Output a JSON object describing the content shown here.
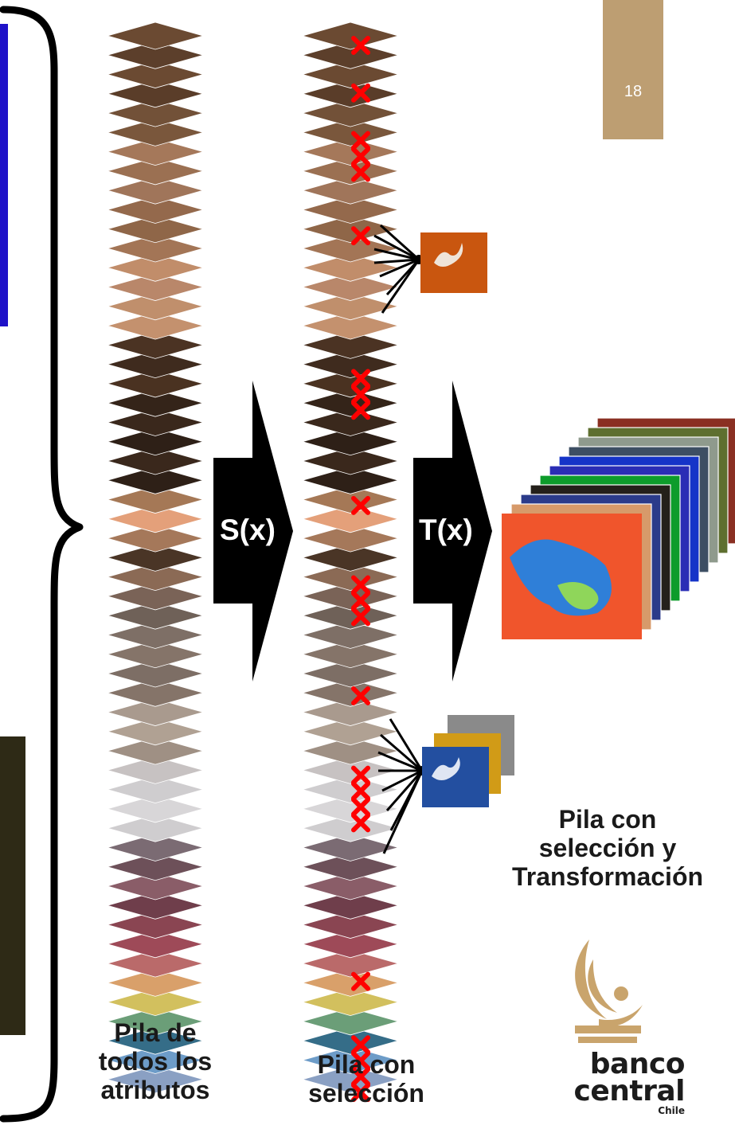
{
  "page_number": "18",
  "stack_all": {
    "line1": "Pila de",
    "line2": "todos los",
    "line3": "atributos"
  },
  "stack_selection": {
    "line1": "Pila con",
    "line2": "selección"
  },
  "stack_selection_transform": {
    "line1": "Pila con",
    "line2": "selección y",
    "line3": "Transformación"
  },
  "arrow_select": "S(x)",
  "arrow_transform": "T(x)",
  "logo": {
    "line1": "banco",
    "line2": "central",
    "line3": "Chile"
  },
  "colors": {
    "page_badge": "#bd9e72",
    "marker": "#ff0000",
    "arrow": "#000000",
    "logo_gold": "#c9a46c"
  },
  "layer_colors": [
    "#6b4a32",
    "#5c3f2b",
    "#6b4a32",
    "#5a3d29",
    "#725138",
    "#7a573c",
    "#a5785a",
    "#9b7052",
    "#a0755a",
    "#94694c",
    "#8f6648",
    "#a37556",
    "#c18d6a",
    "#b9876a",
    "#c08f6c",
    "#c4916e",
    "#4b3323",
    "#3f2b1e",
    "#4a3221",
    "#342419",
    "#3a281c",
    "#2e2017",
    "#3a281c",
    "#2e2017",
    "#a57856",
    "#e4a07a",
    "#a5785a",
    "#4a3526",
    "#8b6a55",
    "#7a6357",
    "#6f6158",
    "#7e6f66",
    "#857469",
    "#7d6e65",
    "#857469",
    "#a99a8e",
    "#b0a193",
    "#9f9084",
    "#c7c2c2",
    "#cfcdcf",
    "#d8d6d8",
    "#cfcdcf",
    "#7b6b73",
    "#6d5059",
    "#8a5d68",
    "#6f3e4b",
    "#8a4552",
    "#9e4a58",
    "#ba6a6a",
    "#d9a06a",
    "#d2c05e",
    "#6b9e78",
    "#356d88",
    "#6d9cc8",
    "#8aa0c3"
  ],
  "selection_marker_layers": [
    0,
    3,
    6,
    7,
    8,
    12,
    21,
    22,
    23,
    29,
    34,
    35,
    36,
    41,
    46,
    47,
    48,
    49,
    59,
    63,
    64,
    65,
    66
  ],
  "extracted_layers": [
    16,
    53
  ]
}
